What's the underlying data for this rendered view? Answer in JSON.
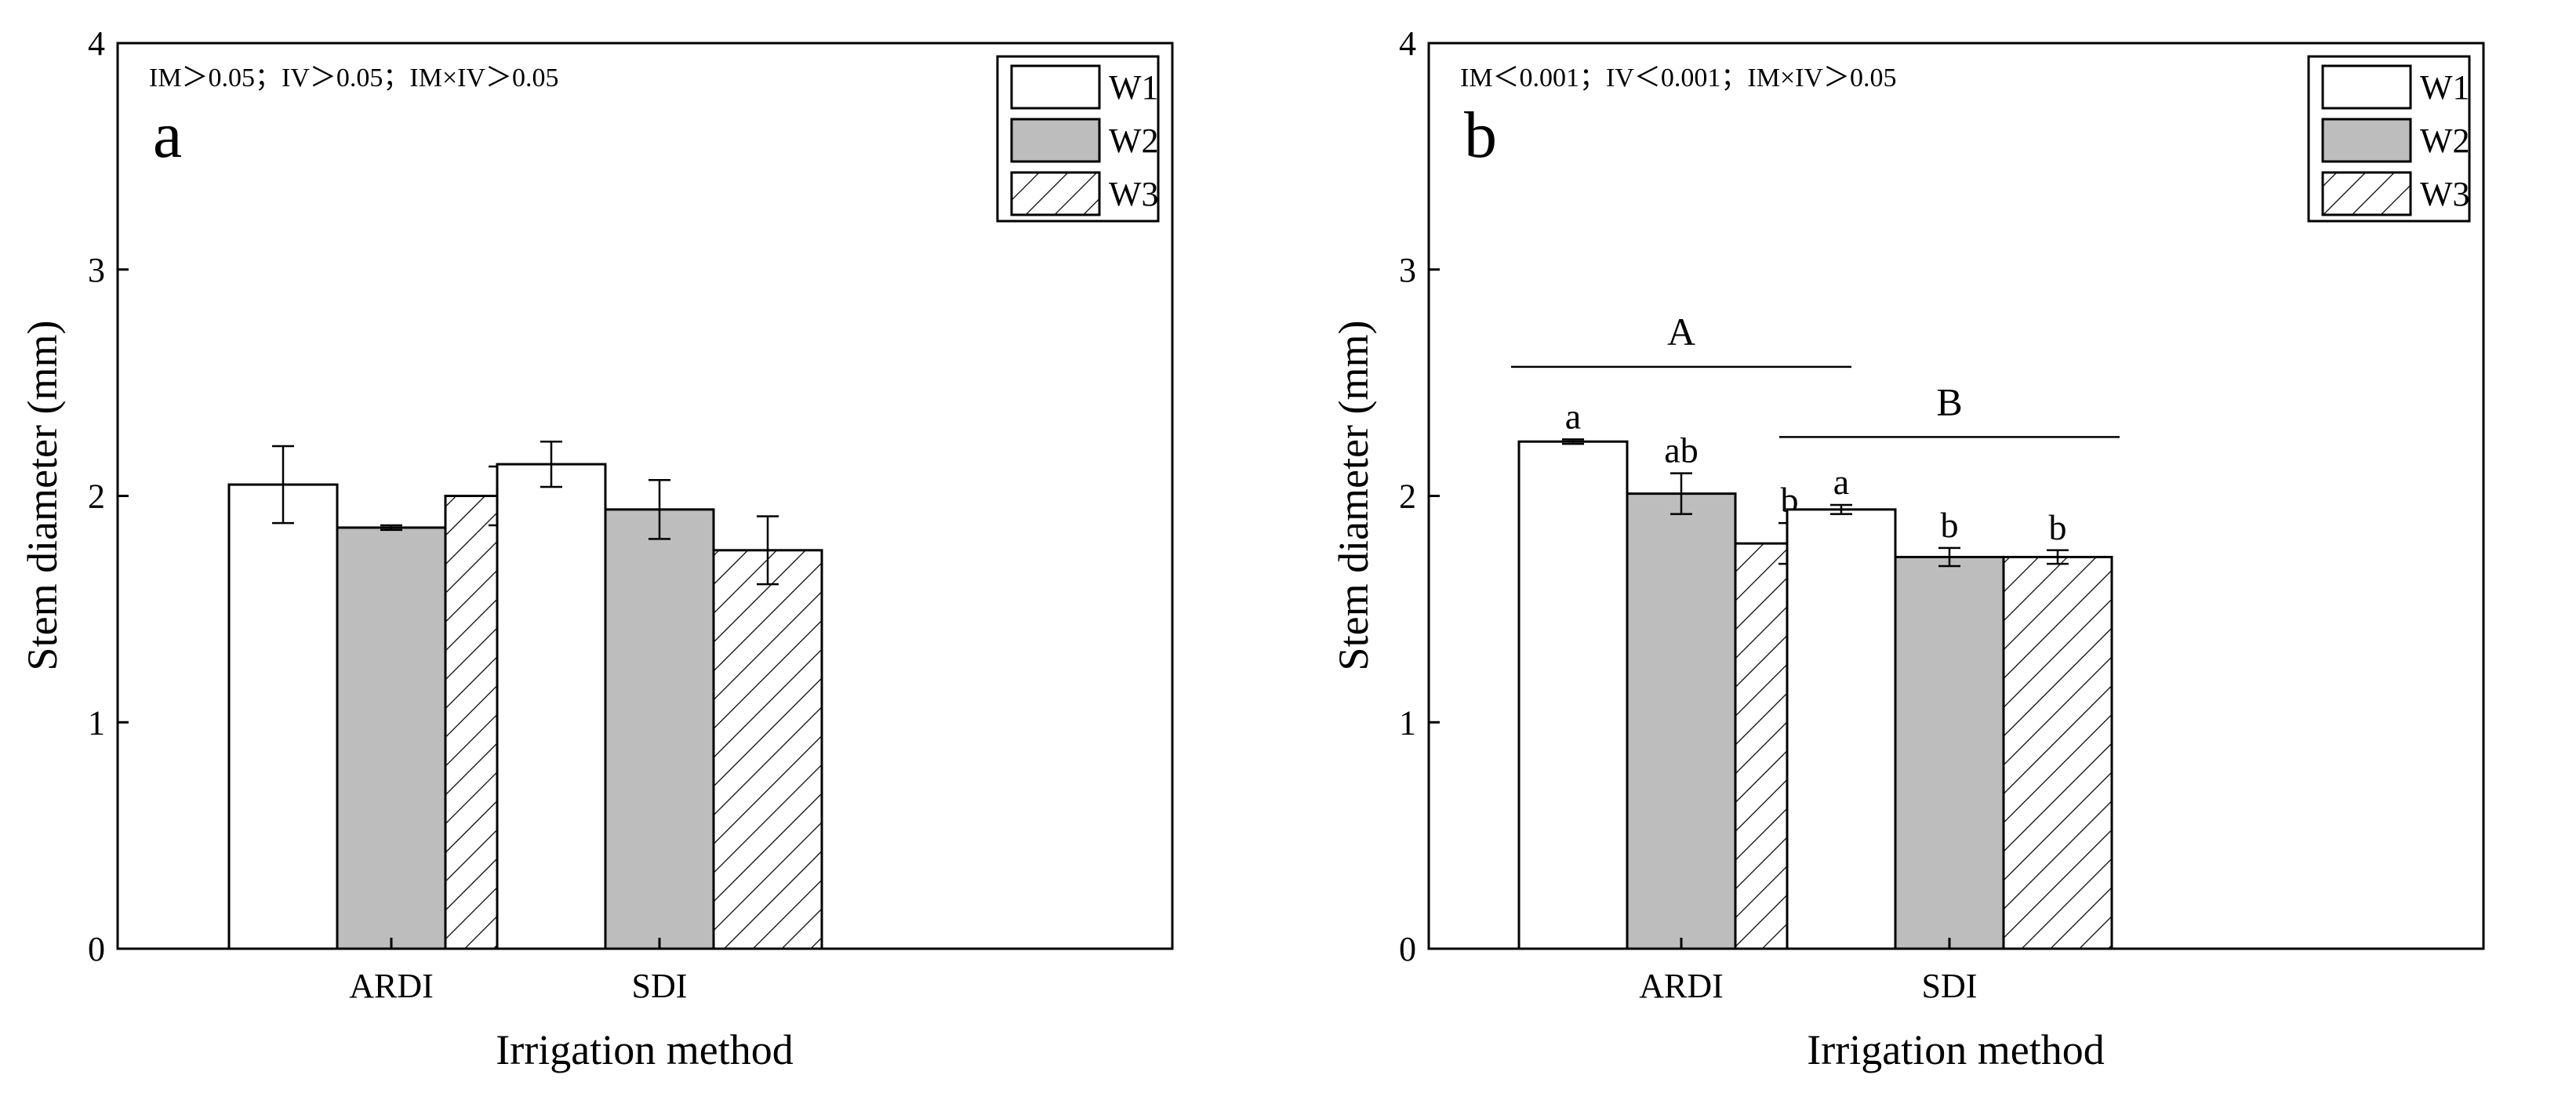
{
  "colors": {
    "w1_fill": "#ffffff",
    "w2_fill": "#bdbdbd",
    "w3_hatch": "#000000",
    "stroke": "#000000"
  },
  "chart_data": [
    {
      "type": "bar",
      "panel_label": "a",
      "stat_text": "IM＞0.05；IV＞0.05；IM×IV＞0.05",
      "title": "",
      "xlabel": "Irrigation method",
      "ylabel": "Stem diameter (mm)",
      "ylim": [
        0,
        4
      ],
      "yticks": [
        "0",
        "1",
        "2",
        "3",
        "4"
      ],
      "categories": [
        "ARDI",
        "SDI"
      ],
      "legend": [
        "W1",
        "W2",
        "W3"
      ],
      "legend_position": "top-right",
      "series": [
        {
          "name": "W1",
          "values": [
            2.05,
            2.14
          ],
          "errors": [
            0.17,
            0.1
          ],
          "letters": [
            "",
            ""
          ]
        },
        {
          "name": "W2",
          "values": [
            1.86,
            1.94
          ],
          "errors": [
            0.01,
            0.13
          ],
          "letters": [
            "",
            ""
          ]
        },
        {
          "name": "W3",
          "values": [
            2.0,
            1.76
          ],
          "errors": [
            0.13,
            0.15
          ],
          "letters": [
            "",
            ""
          ]
        }
      ],
      "group_letters": []
    },
    {
      "type": "bar",
      "panel_label": "b",
      "stat_text": "IM＜0.001；IV＜0.001；IM×IV＞0.05",
      "title": "",
      "xlabel": "Irrigation method",
      "ylabel": "Stem diameter (mm)",
      "ylim": [
        0,
        4
      ],
      "yticks": [
        "0",
        "1",
        "2",
        "3",
        "4"
      ],
      "categories": [
        "ARDI",
        "SDI"
      ],
      "legend": [
        "W1",
        "W2",
        "W3"
      ],
      "legend_position": "top-right",
      "series": [
        {
          "name": "W1",
          "values": [
            2.24,
            1.94
          ],
          "errors": [
            0.01,
            0.02
          ],
          "letters": [
            "a",
            "a"
          ]
        },
        {
          "name": "W2",
          "values": [
            2.01,
            1.73
          ],
          "errors": [
            0.09,
            0.04
          ],
          "letters": [
            "ab",
            "b"
          ]
        },
        {
          "name": "W3",
          "values": [
            1.79,
            1.73
          ],
          "errors": [
            0.09,
            0.03
          ],
          "letters": [
            "b",
            "b"
          ]
        }
      ],
      "group_letters": [
        {
          "category": "ARDI",
          "letter": "A",
          "line_value": 2.57
        },
        {
          "category": "SDI",
          "letter": "B",
          "line_value": 2.26
        }
      ]
    }
  ]
}
